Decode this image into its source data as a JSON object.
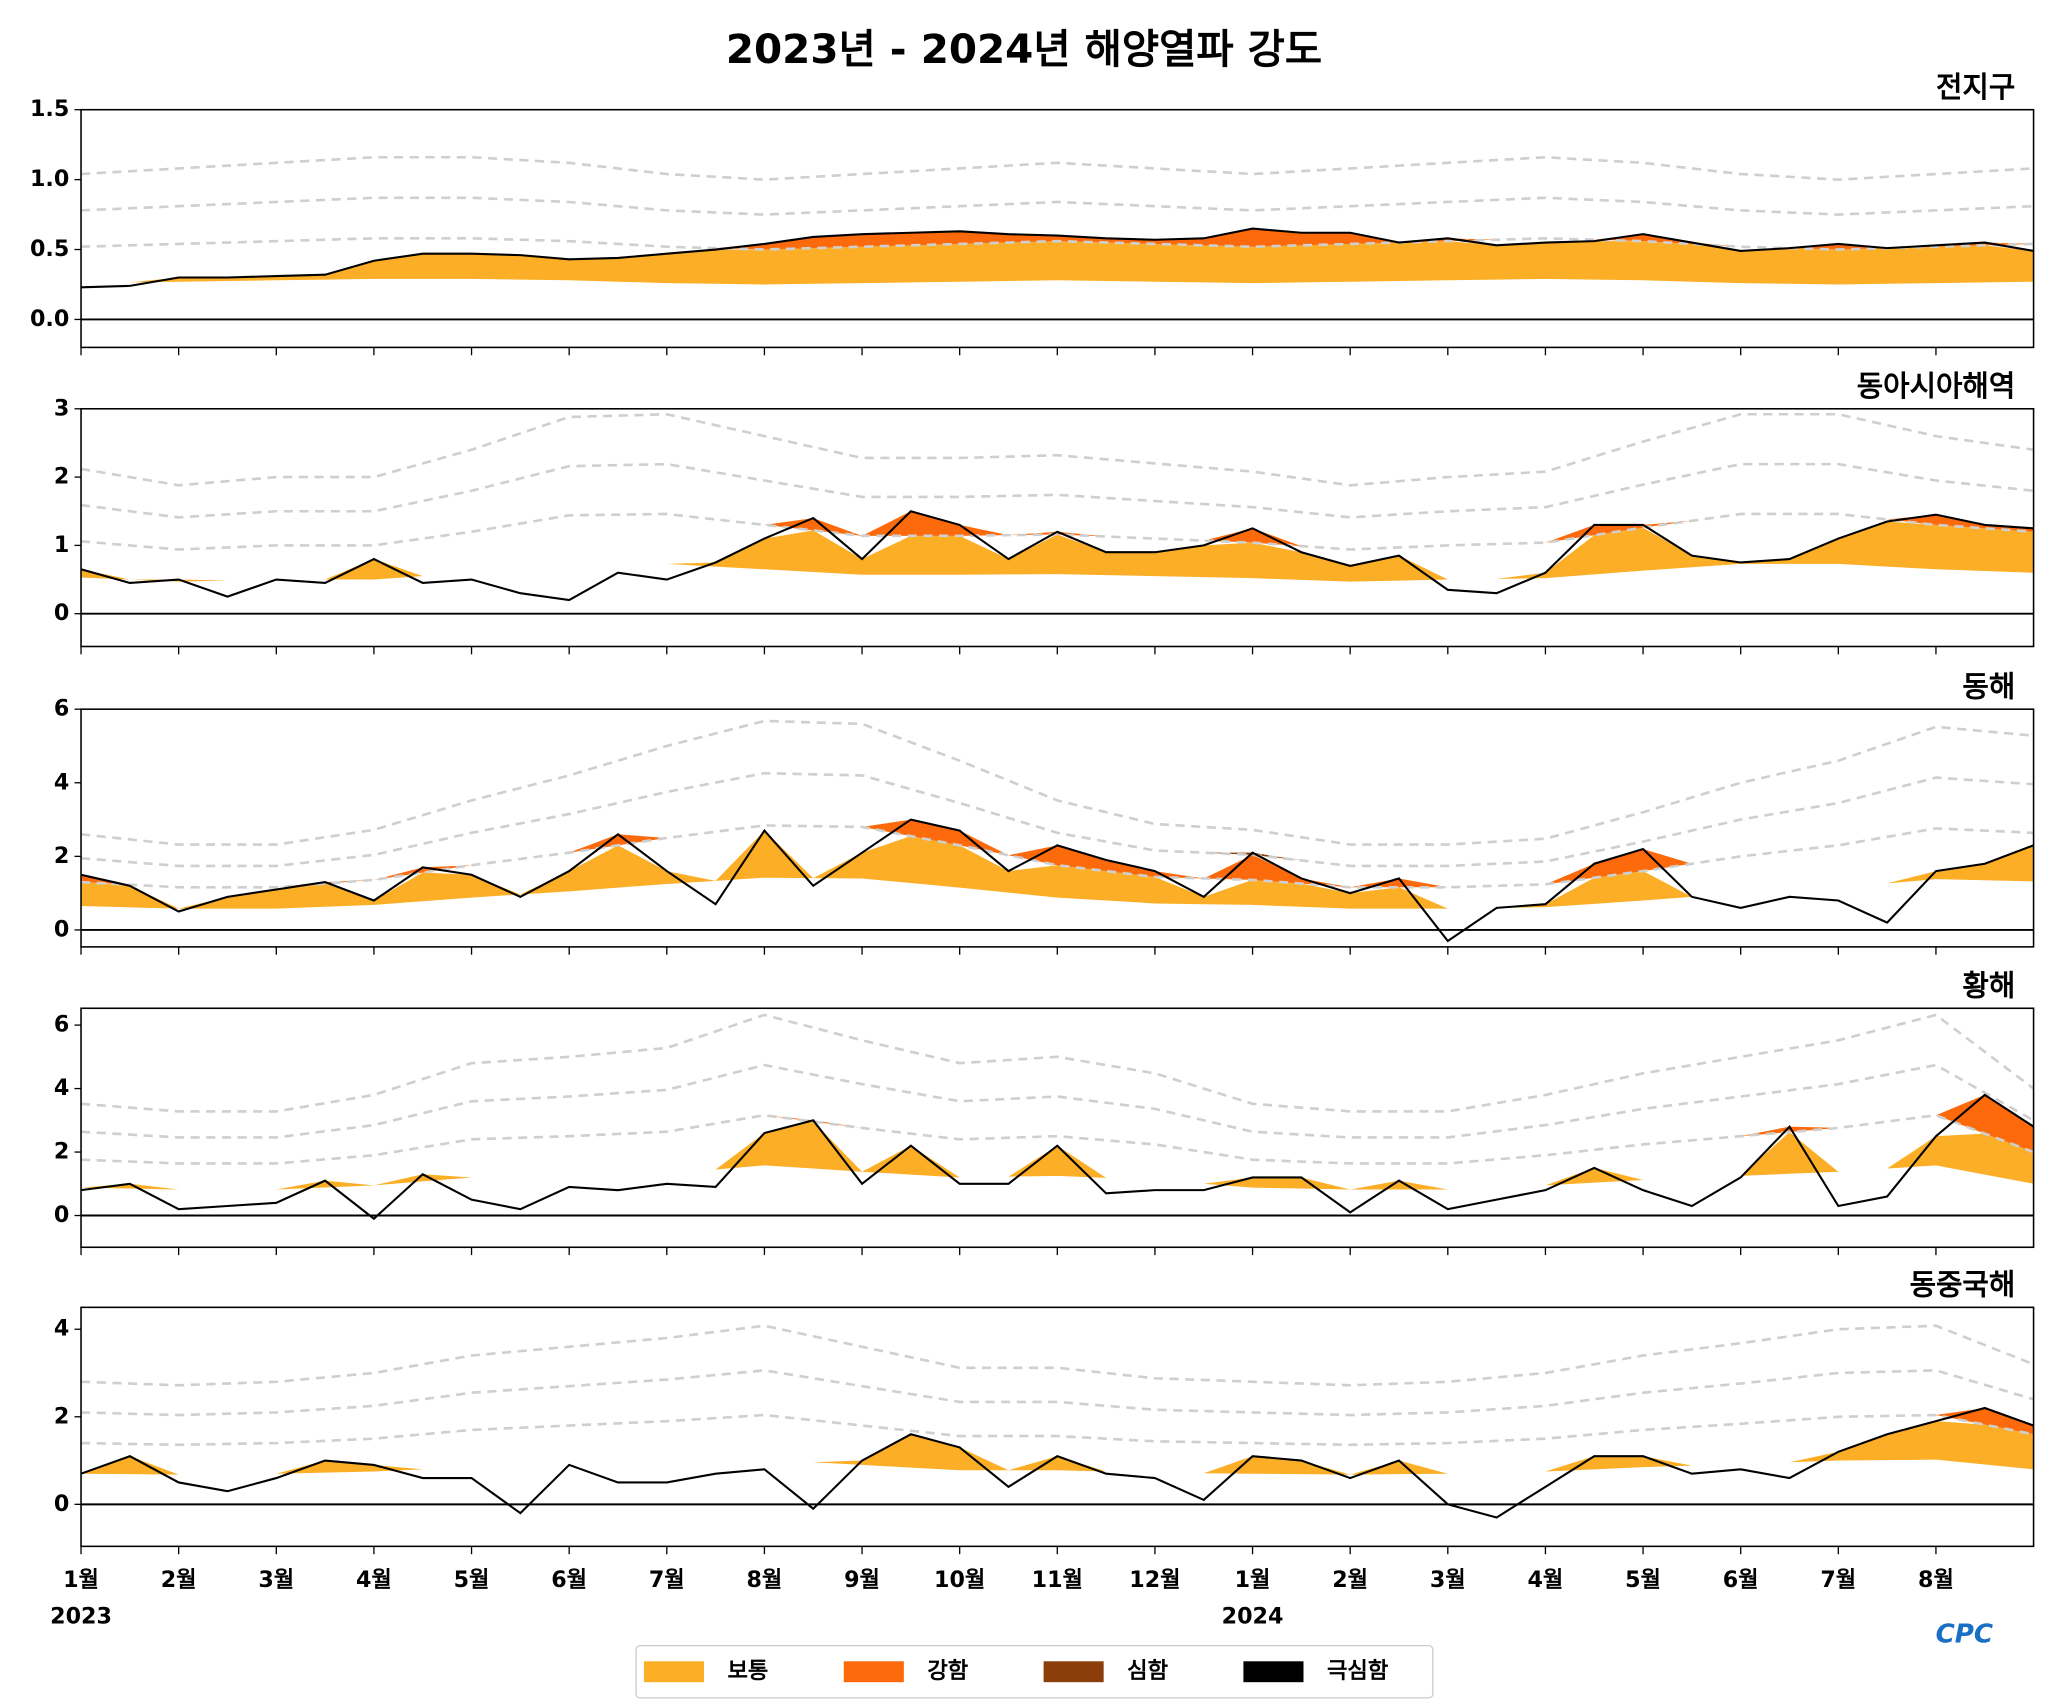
{
  "title": "2023년 - 2024년 해양열파 강도",
  "legend": {
    "labels": [
      "보통",
      "강함",
      "심함",
      "극심함"
    ],
    "colors": [
      "#fbae26",
      "#fc6a0b",
      "#8c3e0a",
      "#000000"
    ]
  },
  "logo": "CPC",
  "chart_data": [
    {
      "type": "mhw",
      "title": "전지구",
      "xlim": [
        0,
        20
      ],
      "ylim": [
        -0.2,
        1.5
      ],
      "yticks": [
        {
          "value": 0,
          "label": "0.0"
        },
        {
          "value": 0.5,
          "label": "0.5"
        },
        {
          "value": 1,
          "label": "1.0"
        },
        {
          "value": 1.5,
          "label": "1.5"
        }
      ],
      "x": [
        0,
        0.5,
        1,
        1.5,
        2,
        2.5,
        3,
        3.5,
        4,
        4.5,
        5,
        5.5,
        6,
        6.5,
        7,
        7.5,
        8,
        8.5,
        9,
        9.5,
        10,
        10.5,
        11,
        11.5,
        12,
        12.5,
        13,
        13.5,
        14,
        14.5,
        15,
        15.5,
        16,
        16.5,
        17,
        17.5,
        18,
        18.5,
        19,
        19.5,
        20
      ],
      "values": [
        0.23,
        0.24,
        0.3,
        0.3,
        0.31,
        0.32,
        0.42,
        0.47,
        0.47,
        0.46,
        0.43,
        0.44,
        0.47,
        0.5,
        0.54,
        0.59,
        0.61,
        0.62,
        0.63,
        0.61,
        0.6,
        0.58,
        0.57,
        0.58,
        0.65,
        0.62,
        0.62,
        0.55,
        0.58,
        0.53,
        0.55,
        0.56,
        0.61,
        0.55,
        0.49,
        0.51,
        0.54,
        0.51,
        0.53,
        0.55,
        0.49
      ],
      "level_x": [
        0,
        1,
        2,
        3,
        4,
        5,
        6,
        7,
        8,
        9,
        10,
        11,
        12,
        13,
        14,
        15,
        16,
        17,
        18,
        19,
        20
      ],
      "levels": [
        [
          0.26,
          0.27,
          0.28,
          0.29,
          0.29,
          0.28,
          0.26,
          0.25,
          0.26,
          0.27,
          0.28,
          0.27,
          0.26,
          0.27,
          0.28,
          0.29,
          0.28,
          0.26,
          0.25,
          0.26,
          0.27
        ],
        [
          0.52,
          0.54,
          0.56,
          0.58,
          0.58,
          0.56,
          0.52,
          0.5,
          0.52,
          0.54,
          0.56,
          0.54,
          0.52,
          0.54,
          0.56,
          0.58,
          0.56,
          0.52,
          0.5,
          0.52,
          0.54
        ],
        [
          0.78,
          0.81,
          0.84,
          0.87,
          0.87,
          0.84,
          0.78,
          0.75,
          0.78,
          0.81,
          0.84,
          0.81,
          0.78,
          0.81,
          0.84,
          0.87,
          0.84,
          0.78,
          0.75,
          0.78,
          0.81
        ],
        [
          1.04,
          1.08,
          1.12,
          1.16,
          1.16,
          1.12,
          1.04,
          1.0,
          1.04,
          1.08,
          1.12,
          1.08,
          1.04,
          1.08,
          1.12,
          1.16,
          1.12,
          1.04,
          1.0,
          1.04,
          1.08
        ]
      ]
    },
    {
      "type": "mhw",
      "title": "동아시아해역",
      "xlim": [
        0,
        20
      ],
      "ylim": [
        -0.48,
        3
      ],
      "yticks": [
        0,
        1,
        2,
        3
      ],
      "x": [
        0,
        0.5,
        1,
        1.5,
        2,
        2.5,
        3,
        3.5,
        4,
        4.5,
        5,
        5.5,
        6,
        6.5,
        7,
        7.5,
        8,
        8.5,
        9,
        9.5,
        10,
        10.5,
        11,
        11.5,
        12,
        12.5,
        13,
        13.5,
        14,
        14.5,
        15,
        15.5,
        16,
        16.5,
        17,
        17.5,
        18,
        18.5,
        19,
        19.5,
        20
      ],
      "values": [
        0.65,
        0.45,
        0.5,
        0.25,
        0.5,
        0.45,
        0.8,
        0.45,
        0.5,
        0.3,
        0.2,
        0.6,
        0.5,
        0.75,
        1.1,
        1.4,
        0.8,
        1.5,
        1.3,
        0.8,
        1.2,
        0.9,
        0.9,
        1.0,
        1.25,
        0.9,
        0.7,
        0.85,
        0.35,
        0.3,
        0.6,
        1.3,
        1.3,
        0.85,
        0.75,
        0.8,
        1.1,
        1.35,
        1.45,
        1.3,
        1.25
      ],
      "level_x": [
        0,
        1,
        2,
        3,
        4,
        5,
        6,
        7,
        8,
        9,
        10,
        11,
        12,
        13,
        14,
        15,
        16,
        17,
        18,
        19,
        20
      ],
      "levels": [
        [
          0.53,
          0.47,
          0.5,
          0.5,
          0.6,
          0.72,
          0.73,
          0.65,
          0.57,
          0.57,
          0.58,
          0.55,
          0.52,
          0.47,
          0.5,
          0.52,
          0.63,
          0.73,
          0.73,
          0.65,
          0.6
        ],
        [
          1.06,
          0.94,
          1.0,
          1.0,
          1.2,
          1.44,
          1.46,
          1.3,
          1.14,
          1.14,
          1.16,
          1.1,
          1.04,
          0.94,
          1.0,
          1.04,
          1.26,
          1.46,
          1.46,
          1.3,
          1.2
        ],
        [
          1.59,
          1.41,
          1.5,
          1.5,
          1.8,
          2.16,
          2.19,
          1.95,
          1.71,
          1.71,
          1.74,
          1.65,
          1.56,
          1.41,
          1.5,
          1.56,
          1.89,
          2.19,
          2.19,
          1.95,
          1.8
        ],
        [
          2.12,
          1.88,
          2.0,
          2.0,
          2.4,
          2.88,
          2.92,
          2.6,
          2.28,
          2.28,
          2.32,
          2.2,
          2.08,
          1.88,
          2.0,
          2.08,
          2.52,
          2.92,
          2.92,
          2.6,
          2.4
        ]
      ]
    },
    {
      "type": "mhw",
      "title": "동해",
      "xlim": [
        0,
        20
      ],
      "ylim": [
        -0.46,
        6
      ],
      "yticks": [
        0,
        2,
        4,
        6
      ],
      "x": [
        0,
        0.5,
        1,
        1.5,
        2,
        2.5,
        3,
        3.5,
        4,
        4.5,
        5,
        5.5,
        6,
        6.5,
        7,
        7.5,
        8,
        8.5,
        9,
        9.5,
        10,
        10.5,
        11,
        11.5,
        12,
        12.5,
        13,
        13.5,
        14,
        14.5,
        15,
        15.5,
        16,
        16.5,
        17,
        17.5,
        18,
        18.5,
        19,
        19.5,
        20
      ],
      "values": [
        1.5,
        1.2,
        0.5,
        0.9,
        1.1,
        1.3,
        0.8,
        1.7,
        1.5,
        0.9,
        1.6,
        2.6,
        1.6,
        0.7,
        2.7,
        1.2,
        2.1,
        3.0,
        2.7,
        1.6,
        2.3,
        1.9,
        1.6,
        0.9,
        2.1,
        1.4,
        1.0,
        1.4,
        -0.3,
        0.6,
        0.7,
        1.8,
        2.2,
        0.9,
        0.6,
        0.9,
        0.8,
        0.2,
        1.6,
        1.8,
        2.3
      ],
      "level_x": [
        0,
        1,
        2,
        3,
        4,
        5,
        6,
        7,
        8,
        9,
        10,
        11,
        12,
        13,
        14,
        15,
        16,
        17,
        18,
        19,
        20
      ],
      "levels": [
        [
          0.65,
          0.58,
          0.58,
          0.68,
          0.88,
          1.05,
          1.25,
          1.42,
          1.4,
          1.15,
          0.88,
          0.72,
          0.68,
          0.58,
          0.58,
          0.62,
          0.8,
          1.0,
          1.15,
          1.38,
          1.32
        ],
        [
          1.3,
          1.16,
          1.16,
          1.36,
          1.76,
          2.1,
          2.5,
          2.84,
          2.8,
          2.3,
          1.76,
          1.44,
          1.36,
          1.16,
          1.16,
          1.24,
          1.6,
          2.0,
          2.3,
          2.76,
          2.64
        ],
        [
          1.95,
          1.74,
          1.74,
          2.04,
          2.64,
          3.15,
          3.75,
          4.26,
          4.2,
          3.45,
          2.64,
          2.16,
          2.04,
          1.74,
          1.74,
          1.86,
          2.4,
          3.0,
          3.45,
          4.14,
          3.96
        ],
        [
          2.6,
          2.32,
          2.32,
          2.72,
          3.52,
          4.2,
          5.0,
          5.68,
          5.6,
          4.6,
          3.52,
          2.88,
          2.72,
          2.32,
          2.32,
          2.48,
          3.2,
          4.0,
          4.6,
          5.52,
          5.28
        ]
      ]
    },
    {
      "type": "mhw",
      "title": "황해",
      "xlim": [
        0,
        20
      ],
      "ylim": [
        -1,
        6.53
      ],
      "yticks": [
        0,
        2,
        4,
        6
      ],
      "x": [
        0,
        0.5,
        1,
        1.5,
        2,
        2.5,
        3,
        3.5,
        4,
        4.5,
        5,
        5.5,
        6,
        6.5,
        7,
        7.5,
        8,
        8.5,
        9,
        9.5,
        10,
        10.5,
        11,
        11.5,
        12,
        12.5,
        13,
        13.5,
        14,
        14.5,
        15,
        15.5,
        16,
        16.5,
        17,
        17.5,
        18,
        18.5,
        19,
        19.5,
        20
      ],
      "values": [
        0.8,
        1.0,
        0.2,
        0.3,
        0.4,
        1.1,
        -0.1,
        1.3,
        0.5,
        0.2,
        0.9,
        0.8,
        1.0,
        0.9,
        2.6,
        3.0,
        1.0,
        2.2,
        1.0,
        1.0,
        2.2,
        0.7,
        0.8,
        0.8,
        1.2,
        1.2,
        0.1,
        1.1,
        0.2,
        0.5,
        0.8,
        1.5,
        0.8,
        0.3,
        1.2,
        2.8,
        0.3,
        0.6,
        2.5,
        3.8,
        2.8
      ],
      "level_x": [
        0,
        1,
        2,
        3,
        4,
        5,
        6,
        7,
        8,
        9,
        10,
        11,
        12,
        13,
        14,
        15,
        16,
        17,
        18,
        19,
        20
      ],
      "levels": [
        [
          0.88,
          0.82,
          0.82,
          0.95,
          1.2,
          1.25,
          1.32,
          1.58,
          1.38,
          1.2,
          1.25,
          1.12,
          0.88,
          0.82,
          0.82,
          0.95,
          1.12,
          1.25,
          1.38,
          1.58,
          1.0
        ],
        [
          1.76,
          1.64,
          1.64,
          1.9,
          2.4,
          2.5,
          2.64,
          3.16,
          2.76,
          2.4,
          2.5,
          2.24,
          1.76,
          1.64,
          1.64,
          1.9,
          2.24,
          2.5,
          2.76,
          3.16,
          2.0
        ],
        [
          2.64,
          2.46,
          2.46,
          2.85,
          3.6,
          3.75,
          3.96,
          4.74,
          4.14,
          3.6,
          3.75,
          3.36,
          2.64,
          2.46,
          2.46,
          2.85,
          3.36,
          3.75,
          4.14,
          4.74,
          3.0
        ],
        [
          3.52,
          3.28,
          3.28,
          3.8,
          4.8,
          5.0,
          5.28,
          6.32,
          5.52,
          4.8,
          5.0,
          4.48,
          3.52,
          3.28,
          3.28,
          3.8,
          4.48,
          5.0,
          5.52,
          6.32,
          4.0
        ]
      ]
    },
    {
      "type": "mhw",
      "title": "동중국해",
      "xlim": [
        0,
        20
      ],
      "ylim": [
        -0.96,
        4.5
      ],
      "yticks": [
        0,
        2,
        4
      ],
      "x": [
        0,
        0.5,
        1,
        1.5,
        2,
        2.5,
        3,
        3.5,
        4,
        4.5,
        5,
        5.5,
        6,
        6.5,
        7,
        7.5,
        8,
        8.5,
        9,
        9.5,
        10,
        10.5,
        11,
        11.5,
        12,
        12.5,
        13,
        13.5,
        14,
        14.5,
        15,
        15.5,
        16,
        16.5,
        17,
        17.5,
        18,
        18.5,
        19,
        19.5,
        20
      ],
      "values": [
        0.7,
        1.1,
        0.5,
        0.3,
        0.6,
        1.0,
        0.9,
        0.6,
        0.6,
        -0.2,
        0.9,
        0.5,
        0.5,
        0.7,
        0.8,
        -0.1,
        1.0,
        1.6,
        1.3,
        0.4,
        1.1,
        0.7,
        0.6,
        0.1,
        1.1,
        1.0,
        0.6,
        1.0,
        0,
        -0.3,
        0.4,
        1.1,
        1.1,
        0.7,
        0.8,
        0.6,
        1.2,
        1.6,
        1.9,
        2.2,
        1.8
      ],
      "level_x": [
        0,
        1,
        2,
        3,
        4,
        5,
        6,
        7,
        8,
        9,
        10,
        11,
        12,
        13,
        14,
        15,
        16,
        17,
        18,
        19,
        20
      ],
      "levels": [
        [
          0.7,
          0.68,
          0.7,
          0.75,
          0.85,
          0.9,
          0.95,
          1.02,
          0.9,
          0.78,
          0.78,
          0.72,
          0.7,
          0.68,
          0.7,
          0.75,
          0.85,
          0.92,
          1.0,
          1.02,
          0.8
        ],
        [
          1.4,
          1.36,
          1.4,
          1.5,
          1.7,
          1.8,
          1.9,
          2.04,
          1.8,
          1.56,
          1.56,
          1.44,
          1.4,
          1.36,
          1.4,
          1.5,
          1.7,
          1.84,
          2.0,
          2.04,
          1.6
        ],
        [
          2.1,
          2.04,
          2.1,
          2.25,
          2.55,
          2.7,
          2.85,
          3.06,
          2.7,
          2.34,
          2.34,
          2.16,
          2.1,
          2.04,
          2.1,
          2.25,
          2.55,
          2.76,
          3.0,
          3.06,
          2.4
        ],
        [
          2.8,
          2.72,
          2.8,
          3.0,
          3.4,
          3.6,
          3.8,
          4.08,
          3.6,
          3.12,
          3.12,
          2.88,
          2.8,
          2.72,
          2.8,
          3.0,
          3.4,
          3.68,
          4.0,
          4.08,
          3.2
        ]
      ],
      "xticks": [
        {
          "value": 0,
          "label": "1월"
        },
        {
          "value": 1,
          "label": "2월"
        },
        {
          "value": 2,
          "label": "3월"
        },
        {
          "value": 3,
          "label": "4월"
        },
        {
          "value": 4,
          "label": "5월"
        },
        {
          "value": 5,
          "label": "6월"
        },
        {
          "value": 6,
          "label": "7월"
        },
        {
          "value": 7,
          "label": "8월"
        },
        {
          "value": 8,
          "label": "9월"
        },
        {
          "value": 9,
          "label": "10월"
        },
        {
          "value": 10,
          "label": "11월"
        },
        {
          "value": 11,
          "label": "12월"
        },
        {
          "value": 12,
          "label": "1월"
        },
        {
          "value": 13,
          "label": "2월"
        },
        {
          "value": 14,
          "label": "3월"
        },
        {
          "value": 15,
          "label": "4월"
        },
        {
          "value": 16,
          "label": "5월"
        },
        {
          "value": 17,
          "label": "6월"
        },
        {
          "value": 18,
          "label": "7월"
        },
        {
          "value": 19,
          "label": "8월"
        }
      ],
      "year_labels": [
        {
          "value": 0,
          "label": "2023"
        },
        {
          "value": 12,
          "label": "2024"
        }
      ]
    }
  ]
}
